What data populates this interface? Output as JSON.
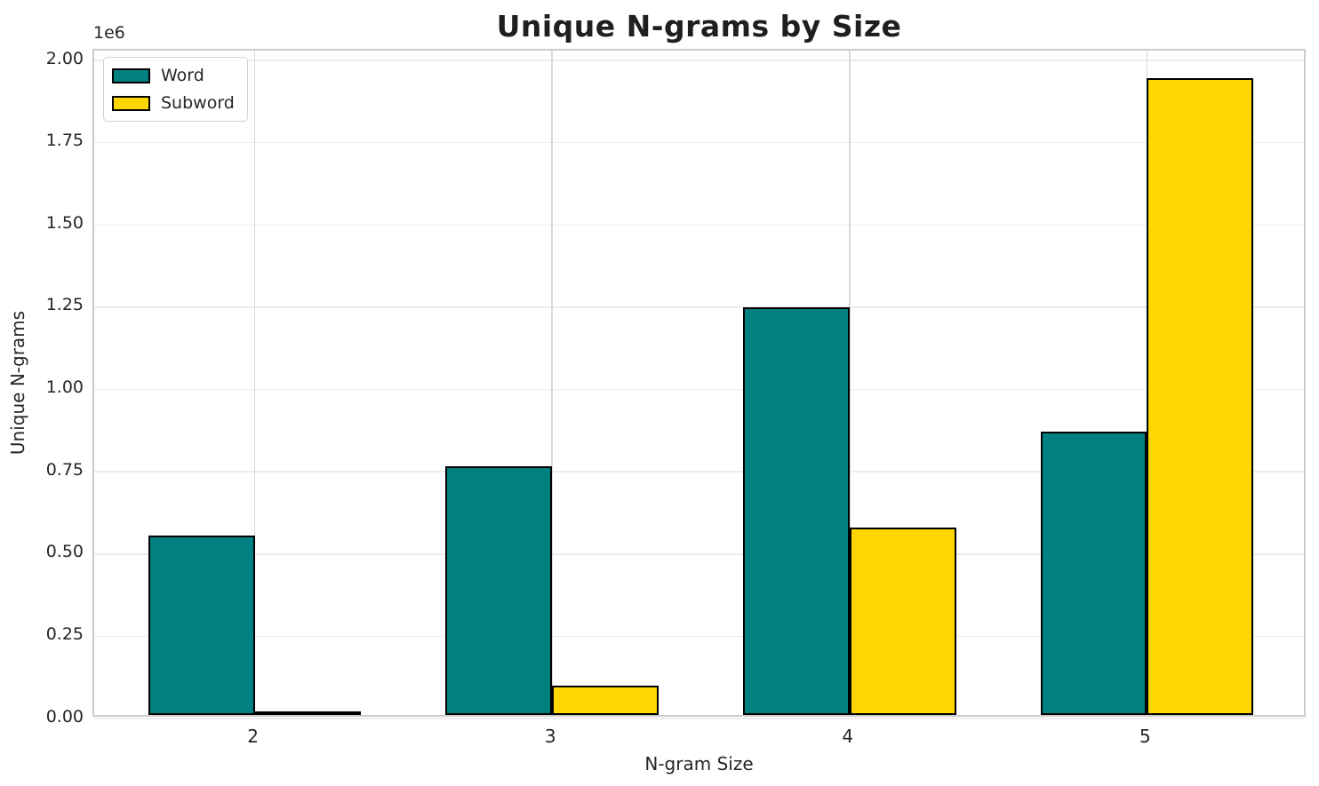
{
  "chart_data": {
    "type": "bar",
    "title": "Unique N-grams by Size",
    "xlabel": "N-gram Size",
    "ylabel": "Unique N-grams",
    "offset_text": "1e6",
    "categories": [
      "2",
      "3",
      "4",
      "5"
    ],
    "series": [
      {
        "name": "Word",
        "color": "#008080",
        "values": [
          545000,
          755000,
          1240000,
          860000
        ]
      },
      {
        "name": "Subword",
        "color": "#FFD700",
        "values": [
          10000,
          90000,
          570000,
          1935000
        ]
      }
    ],
    "ylim": [
      0,
      2030000
    ],
    "yticks": [
      0,
      250000,
      500000,
      750000,
      1000000,
      1250000,
      1500000,
      1750000,
      2000000
    ],
    "ytick_labels": [
      "0.00",
      "0.25",
      "0.50",
      "0.75",
      "1.00",
      "1.25",
      "1.50",
      "1.75",
      "2.00"
    ],
    "grid": true,
    "legend_position": "upper left",
    "bar_edge_color": "#000000",
    "background_color": "#ffffff",
    "grid_color": "#ececec",
    "spine_color": "#cccccc",
    "text_color": "#262626"
  }
}
